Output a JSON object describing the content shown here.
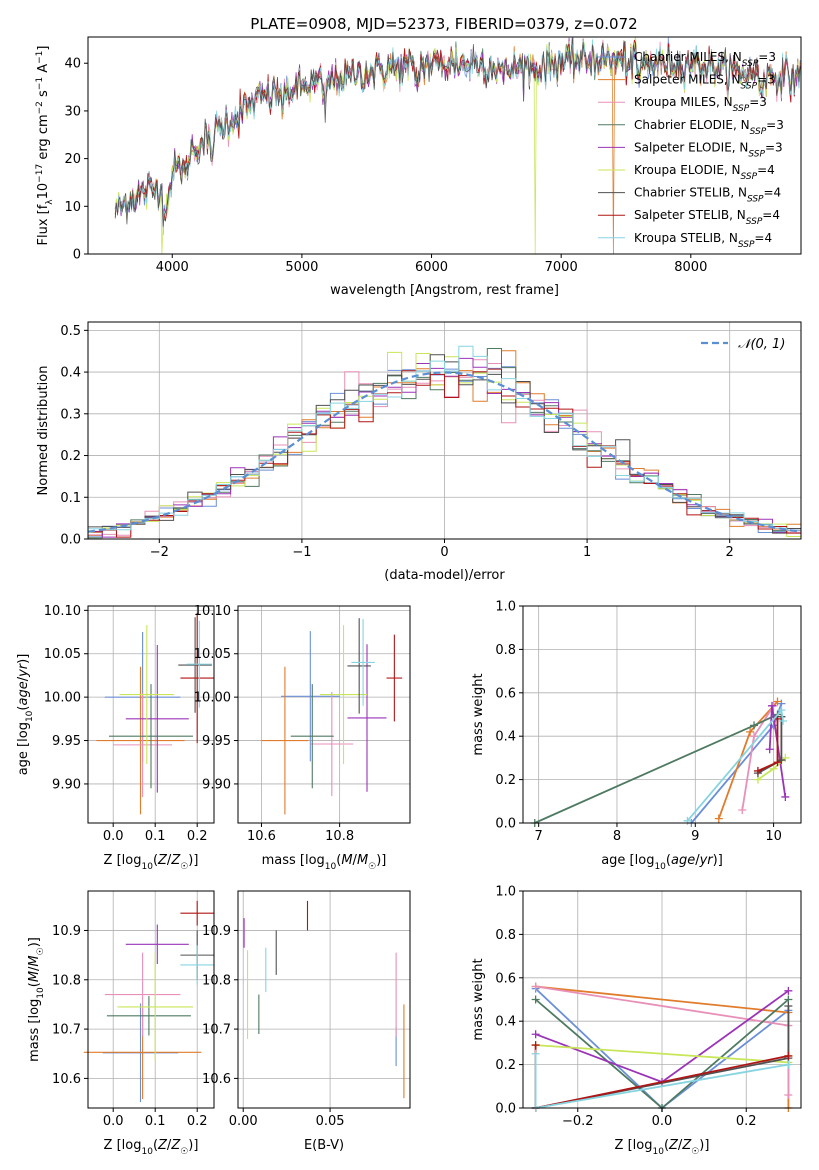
{
  "title": "PLATE=0908, MJD=52373, FIBERID=0379, z=0.072",
  "colors": [
    "#6a8fd8",
    "#e07c2c",
    "#e890b8",
    "#4f7a62",
    "#9b33b8",
    "#c8e65a",
    "#505050",
    "#b01515",
    "#86d4e0"
  ],
  "legend_spectrum": [
    {
      "pre": "Chabrier MILES, N",
      "sub": "SSP",
      "post": "=3"
    },
    {
      "pre": "Salpeter MILES, N",
      "sub": "SSP",
      "post": "=3"
    },
    {
      "pre": "Kroupa MILES, N",
      "sub": "SSP",
      "post": "=3"
    },
    {
      "pre": "Chabrier ELODIE, N",
      "sub": "SSP",
      "post": "=3"
    },
    {
      "pre": "Salpeter ELODIE, N",
      "sub": "SSP",
      "post": "=3"
    },
    {
      "pre": "Kroupa ELODIE, N",
      "sub": "SSP",
      "post": "=4"
    },
    {
      "pre": "Chabrier STELIB, N",
      "sub": "SSP",
      "post": "=4"
    },
    {
      "pre": "Salpeter STELIB, N",
      "sub": "SSP",
      "post": "=4"
    },
    {
      "pre": "Kroupa STELIB, N",
      "sub": "SSP",
      "post": "=4"
    }
  ],
  "legend_normal": "𝒩(0, 1)",
  "chart_data": [
    {
      "id": "spectrum",
      "type": "line",
      "title": "PLATE=0908, MJD=52373, FIBERID=0379, z=0.072",
      "xlabel": "wavelength [Angstrom, rest frame]",
      "ylabel": "Flux [f_λ 10^-17 erg cm^-2 s^-1 A^-1]",
      "xlim": [
        3350,
        8850
      ],
      "ylim": [
        0,
        45.5
      ],
      "xticks": [
        4000,
        5000,
        6000,
        7000,
        8000
      ],
      "yticks": [
        0,
        10,
        20,
        30,
        40
      ],
      "grid": false,
      "legend": "top-right",
      "continuum": [
        [
          3560,
          9
        ],
        [
          3700,
          12
        ],
        [
          3900,
          14
        ],
        [
          4000,
          17
        ],
        [
          4200,
          23
        ],
        [
          4500,
          29
        ],
        [
          4700,
          33
        ],
        [
          5000,
          35
        ],
        [
          5300,
          37
        ],
        [
          5700,
          39
        ],
        [
          6000,
          40
        ],
        [
          6300,
          40
        ],
        [
          6600,
          39
        ],
        [
          6800,
          39
        ],
        [
          7000,
          40.5
        ],
        [
          7300,
          41
        ],
        [
          7600,
          40
        ],
        [
          8000,
          40
        ],
        [
          8400,
          38
        ],
        [
          8850,
          37
        ]
      ],
      "dips": [
        [
          3933,
          6
        ],
        [
          3968,
          5
        ],
        [
          4102,
          4
        ],
        [
          4300,
          4
        ],
        [
          4861,
          3
        ],
        [
          5175,
          5
        ],
        [
          5890,
          4
        ],
        [
          6563,
          2
        ],
        [
          7600,
          3
        ],
        [
          8542,
          3
        ]
      ],
      "drops": [
        {
          "x": 3920,
          "series": 5
        },
        {
          "x": 6800,
          "series": 5
        },
        {
          "x": 7400,
          "series": 1
        }
      ]
    },
    {
      "id": "residuals",
      "type": "step",
      "xlabel": "(data-model)/error",
      "ylabel": "Normed distribution",
      "xlim": [
        -2.5,
        2.5
      ],
      "ylim": [
        0,
        0.52
      ],
      "xticks": [
        -2,
        -1,
        0,
        1,
        2
      ],
      "yticks": [
        0.0,
        0.1,
        0.2,
        0.3,
        0.4,
        0.5
      ],
      "grid": true,
      "legend": "top-right",
      "bin_width": 0.1,
      "reference_curve": "N(0,1)"
    },
    {
      "id": "age_vs_Z",
      "type": "errorbar",
      "xlabel": "Z [log10(Z/Z☉)]",
      "ylabel": "age [log10(age/yr)]",
      "xlim": [
        -0.06,
        0.24
      ],
      "ylim": [
        9.855,
        10.105
      ],
      "xticks": [
        0.0,
        0.1,
        0.2
      ],
      "yticks": [
        9.9,
        9.95,
        10.0,
        10.05,
        10.1
      ],
      "grid": true,
      "points": [
        {
          "x": 0.07,
          "y": 10.0,
          "xerr": 0.09,
          "yerr": 0.075
        },
        {
          "x": 0.065,
          "y": 9.95,
          "xerr": 0.105,
          "yerr": 0.085
        },
        {
          "x": 0.07,
          "y": 9.945,
          "xerr": 0.07,
          "yerr": 0.06
        },
        {
          "x": 0.09,
          "y": 9.955,
          "xerr": 0.1,
          "yerr": 0.06
        },
        {
          "x": 0.105,
          "y": 9.975,
          "xerr": 0.075,
          "yerr": 0.085
        },
        {
          "x": 0.08,
          "y": 10.003,
          "xerr": 0.065,
          "yerr": 0.08
        },
        {
          "x": 0.195,
          "y": 10.037,
          "xerr": 0.04,
          "yerr": 0.055
        },
        {
          "x": 0.2,
          "y": 10.022,
          "xerr": 0.04,
          "yerr": 0.075
        },
        {
          "x": 0.205,
          "y": 10.038,
          "xerr": 0.03,
          "yerr": 0.05
        }
      ]
    },
    {
      "id": "age_vs_mass",
      "type": "errorbar",
      "xlabel": "mass [log10(M/M☉)]",
      "ylabel": "",
      "xlim": [
        10.54,
        10.98
      ],
      "ylim": [
        9.855,
        10.105
      ],
      "xticks": [
        10.6,
        10.8
      ],
      "yticks": [
        9.9,
        9.95,
        10.0,
        10.05,
        10.1
      ],
      "grid": true,
      "points": [
        {
          "x": 10.725,
          "y": 10.001,
          "xerr": 0.075,
          "yerr": 0.075
        },
        {
          "x": 10.66,
          "y": 9.95,
          "xerr": 0.06,
          "yerr": 0.085
        },
        {
          "x": 10.78,
          "y": 9.946,
          "xerr": 0.055,
          "yerr": 0.06
        },
        {
          "x": 10.73,
          "y": 9.955,
          "xerr": 0.055,
          "yerr": 0.06
        },
        {
          "x": 10.87,
          "y": 9.976,
          "xerr": 0.05,
          "yerr": 0.085
        },
        {
          "x": 10.81,
          "y": 10.003,
          "xerr": 0.06,
          "yerr": 0.08
        },
        {
          "x": 10.85,
          "y": 10.036,
          "xerr": 0.03,
          "yerr": 0.055
        },
        {
          "x": 10.94,
          "y": 10.022,
          "xerr": 0.02,
          "yerr": 0.05
        },
        {
          "x": 10.86,
          "y": 10.04,
          "xerr": 0.03,
          "yerr": 0.05
        }
      ]
    },
    {
      "id": "weight_vs_age",
      "type": "line",
      "xlabel": "age [log10(age/yr)]",
      "ylabel": "mass weight",
      "xlim": [
        6.8,
        10.35
      ],
      "ylim": [
        0,
        1.0
      ],
      "xticks": [
        7,
        8,
        9,
        10
      ],
      "yticks": [
        0.0,
        0.2,
        0.4,
        0.6,
        0.8,
        1.0
      ],
      "grid": true,
      "series": [
        {
          "points": [
            [
              8.95,
              0.0
            ],
            [
              10.0,
              0.45
            ],
            [
              10.1,
              0.55
            ]
          ]
        },
        {
          "points": [
            [
              9.3,
              0.02
            ],
            [
              9.7,
              0.42
            ],
            [
              10.05,
              0.56
            ]
          ]
        },
        {
          "points": [
            [
              9.6,
              0.06
            ],
            [
              9.75,
              0.4
            ],
            [
              10.0,
              0.54
            ]
          ]
        },
        {
          "points": [
            [
              6.95,
              0.0
            ],
            [
              9.75,
              0.45
            ],
            [
              10.05,
              0.5
            ]
          ]
        },
        {
          "points": [
            [
              9.95,
              0.34
            ],
            [
              9.98,
              0.54
            ],
            [
              10.15,
              0.12
            ]
          ]
        },
        {
          "points": [
            [
              9.8,
              0.2
            ],
            [
              10.0,
              0.25
            ],
            [
              10.15,
              0.3
            ]
          ]
        },
        {
          "points": [
            [
              9.8,
              0.23
            ],
            [
              10.1,
              0.29
            ],
            [
              10.1,
              0.49
            ]
          ]
        },
        {
          "points": [
            [
              9.8,
              0.24
            ],
            [
              10.05,
              0.28
            ],
            [
              10.05,
              0.48
            ]
          ]
        },
        {
          "points": [
            [
              8.9,
              0.01
            ],
            [
              10.1,
              0.52
            ],
            [
              10.12,
              0.47
            ]
          ]
        }
      ]
    },
    {
      "id": "mass_vs_Z",
      "type": "errorbar",
      "xlabel": "Z [log10(Z/Z☉)]",
      "ylabel": "mass [log10(M/M☉)]",
      "xlim": [
        -0.06,
        0.24
      ],
      "ylim": [
        10.54,
        10.98
      ],
      "xticks": [
        0.0,
        0.1,
        0.2
      ],
      "yticks": [
        10.6,
        10.7,
        10.8,
        10.9
      ],
      "grid": true,
      "points": [
        {
          "x": 0.065,
          "y": 10.652,
          "xerr": 0.09,
          "yerr": 0.1
        },
        {
          "x": 0.07,
          "y": 10.653,
          "xerr": 0.14,
          "yerr": 0.095
        },
        {
          "x": 0.07,
          "y": 10.77,
          "xerr": 0.09,
          "yerr": 0.085
        },
        {
          "x": 0.085,
          "y": 10.727,
          "xerr": 0.1,
          "yerr": 0.04
        },
        {
          "x": 0.105,
          "y": 10.872,
          "xerr": 0.075,
          "yerr": 0.04
        },
        {
          "x": 0.1,
          "y": 10.745,
          "xerr": 0.09,
          "yerr": 0.11
        },
        {
          "x": 0.2,
          "y": 10.85,
          "xerr": 0.04,
          "yerr": 0.05
        },
        {
          "x": 0.2,
          "y": 10.935,
          "xerr": 0.04,
          "yerr": 0.025
        },
        {
          "x": 0.2,
          "y": 10.83,
          "xerr": 0.04,
          "yerr": 0.04
        }
      ]
    },
    {
      "id": "mass_vs_ebv",
      "type": "errorbar",
      "xlabel": "E(B-V)",
      "ylabel": "",
      "xlim": [
        -0.003,
        0.096
      ],
      "ylim": [
        10.54,
        10.98
      ],
      "xticks": [
        0.0,
        0.05
      ],
      "yticks": [
        10.6,
        10.7,
        10.8,
        10.9
      ],
      "grid": true,
      "points": [
        {
          "x": 0.088,
          "y": 10.665,
          "xerr": 0,
          "yerr": 0.04
        },
        {
          "x": 0.0925,
          "y": 10.655,
          "xerr": 0,
          "yerr": 0.095
        },
        {
          "x": 0.088,
          "y": 10.77,
          "xerr": 0,
          "yerr": 0.085
        },
        {
          "x": 0.009,
          "y": 10.73,
          "xerr": 0,
          "yerr": 0.04
        },
        {
          "x": 0.0005,
          "y": 10.895,
          "xerr": 0,
          "yerr": 0.03
        },
        {
          "x": 0.0025,
          "y": 10.77,
          "xerr": 0,
          "yerr": 0.09
        },
        {
          "x": 0.019,
          "y": 10.855,
          "xerr": 0,
          "yerr": 0.045
        },
        {
          "x": 0.037,
          "y": 10.93,
          "xerr": 0,
          "yerr": 0.03
        },
        {
          "x": 0.013,
          "y": 10.82,
          "xerr": 0,
          "yerr": 0.045
        }
      ]
    },
    {
      "id": "weight_vs_Z",
      "type": "line",
      "xlabel": "Z [log10(Z/Z☉)]",
      "ylabel": "mass weight",
      "xlim": [
        -0.33,
        0.33
      ],
      "ylim": [
        0,
        1.0
      ],
      "xticks": [
        -0.2,
        0.0,
        0.2
      ],
      "yticks": [
        0.0,
        0.2,
        0.4,
        0.6,
        0.8,
        1.0
      ],
      "grid": true,
      "series": [
        {
          "points": [
            [
              -0.3,
              0.55
            ],
            [
              0.0,
              0.0
            ],
            [
              0.3,
              0.45
            ]
          ]
        },
        {
          "points": [
            [
              -0.3,
              0.56
            ],
            [
              0.3,
              0.44
            ],
            [
              0.3,
              0.0
            ]
          ]
        },
        {
          "points": [
            [
              -0.3,
              0.56
            ],
            [
              0.3,
              0.38
            ],
            [
              0.3,
              0.06
            ]
          ]
        },
        {
          "points": [
            [
              -0.3,
              0.5
            ],
            [
              0.0,
              0.0
            ],
            [
              0.3,
              0.5
            ]
          ]
        },
        {
          "points": [
            [
              -0.3,
              0.34
            ],
            [
              0.0,
              0.12
            ],
            [
              0.3,
              0.54
            ]
          ]
        },
        {
          "points": [
            [
              -0.3,
              0.29
            ],
            [
              0.3,
              0.21
            ],
            [
              0.3,
              0.24
            ]
          ]
        },
        {
          "points": [
            [
              -0.3,
              0.0
            ],
            [
              0.3,
              0.23
            ],
            [
              0.3,
              0.47
            ]
          ]
        },
        {
          "points": [
            [
              -0.3,
              0.29
            ],
            [
              -0.3,
              0.0
            ],
            [
              0.3,
              0.24
            ]
          ]
        },
        {
          "points": [
            [
              -0.3,
              0.25
            ],
            [
              -0.3,
              0.0
            ],
            [
              0.3,
              0.2
            ]
          ]
        }
      ]
    }
  ]
}
